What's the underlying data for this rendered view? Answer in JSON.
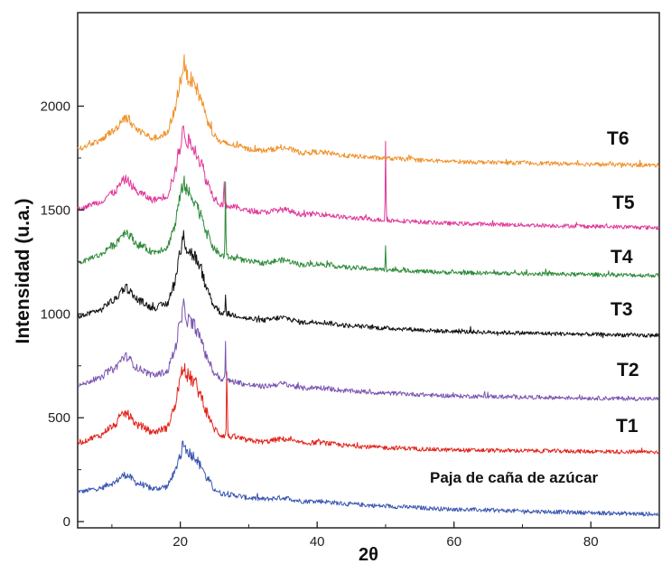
{
  "chart_data": {
    "type": "line",
    "title": "",
    "xlabel": "2θ",
    "ylabel": "Intensidad (u.a.)",
    "xlim": [
      5,
      90
    ],
    "ylim": [
      -30,
      2450
    ],
    "x_ticks": [
      20,
      40,
      60,
      80
    ],
    "x_tick_labels": [
      "20",
      "40",
      "60",
      "80"
    ],
    "y_ticks": [
      0,
      500,
      1000,
      1500,
      2000
    ],
    "y_tick_labels": [
      "0",
      "500",
      "1000",
      "1500",
      "2000"
    ],
    "grid": false,
    "legend": "none",
    "series": [
      {
        "name": "Paja de caña de azúcar",
        "color": "#3a56b0",
        "baseline": 150,
        "end": 35,
        "amp": 0.65,
        "sharp": []
      },
      {
        "name": "T1",
        "color": "#e2231a",
        "baseline": 380,
        "end": 335,
        "amp": 0.95,
        "sharp": [
          {
            "x": 26.8,
            "h": 380
          }
        ]
      },
      {
        "name": "T2",
        "color": "#7a55b0",
        "baseline": 660,
        "end": 590,
        "amp": 0.95,
        "sharp": [
          {
            "x": 26.6,
            "h": 180
          }
        ]
      },
      {
        "name": "T3",
        "color": "#111111",
        "baseline": 990,
        "end": 895,
        "amp": 1.0,
        "sharp": [
          {
            "x": 26.6,
            "h": 80
          }
        ]
      },
      {
        "name": "T4",
        "color": "#2e8b3a",
        "baseline": 1250,
        "end": 1185,
        "amp": 1.0,
        "sharp": [
          {
            "x": 26.6,
            "h": 360
          },
          {
            "x": 50.0,
            "h": 120
          }
        ]
      },
      {
        "name": "T5",
        "color": "#e0399a",
        "baseline": 1510,
        "end": 1415,
        "amp": 1.0,
        "sharp": [
          {
            "x": 26.4,
            "h": 150
          },
          {
            "x": 50.0,
            "h": 380
          }
        ]
      },
      {
        "name": "T6",
        "color": "#f0912a",
        "baseline": 1800,
        "end": 1715,
        "amp": 1.05,
        "sharp": []
      }
    ],
    "profile_x": [
      5,
      8,
      10,
      12,
      14,
      16,
      18,
      19,
      20,
      20.5,
      21,
      22,
      23,
      24,
      25,
      26,
      28,
      30,
      32,
      35,
      38,
      40,
      45,
      50,
      60,
      70,
      80,
      90
    ],
    "profile_y": [
      0,
      40,
      90,
      160,
      100,
      70,
      90,
      180,
      330,
      420,
      360,
      330,
      260,
      160,
      90,
      60,
      50,
      35,
      30,
      45,
      25,
      30,
      15,
      8,
      0,
      0,
      0,
      0
    ]
  },
  "labels": {
    "t6": "T6",
    "t5": "T5",
    "t4": "T4",
    "t3": "T3",
    "t2": "T2",
    "t1": "T1",
    "raw": "Paja de caña de azúcar"
  }
}
